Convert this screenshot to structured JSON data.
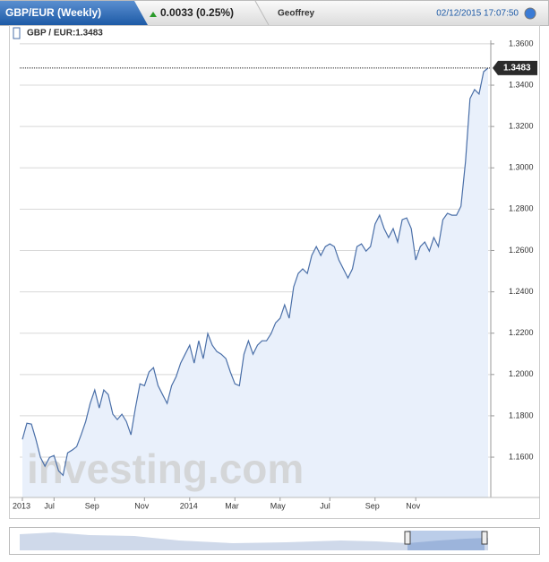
{
  "header": {
    "tab": "GBP/EUR (Weekly)",
    "change": "0.0033 (0.25%)",
    "user": "Geoffrey",
    "timestamp": "02/12/2015 17:07:50"
  },
  "legend_label": "GBP / EUR:1.3483",
  "watermark": "investing.com",
  "chart_data": {
    "type": "area",
    "color": "#4a6fa8",
    "fill": "#e9f0fb",
    "values": [
      1.1686,
      1.1764,
      1.176,
      1.1686,
      1.1599,
      1.1556,
      1.1599,
      1.1608,
      1.1534,
      1.1512,
      1.1621,
      1.1634,
      1.1651,
      1.1708,
      1.1773,
      1.186,
      1.1925,
      1.1838,
      1.1925,
      1.1903,
      1.1808,
      1.1782,
      1.1808,
      1.1773,
      1.1708,
      1.1838,
      1.1955,
      1.1946,
      1.2012,
      1.2033,
      1.1946,
      1.1903,
      1.186,
      1.1946,
      1.199,
      1.2055,
      1.2098,
      1.2142,
      1.2055,
      1.2163,
      1.2077,
      1.2198,
      1.2142,
      1.2111,
      1.2098,
      1.2077,
      1.2012,
      1.1955,
      1.1946,
      1.2098,
      1.2163,
      1.2098,
      1.2142,
      1.2163,
      1.2163,
      1.2198,
      1.225,
      1.2272,
      1.2337,
      1.2272,
      1.2424,
      1.2489,
      1.2511,
      1.2489,
      1.2576,
      1.2619,
      1.2576,
      1.2619,
      1.2632,
      1.2619,
      1.2554,
      1.2511,
      1.2467,
      1.2511,
      1.2619,
      1.2632,
      1.2597,
      1.2619,
      1.2728,
      1.2771,
      1.2706,
      1.2663,
      1.2706,
      1.2641,
      1.2749,
      1.2758,
      1.2706,
      1.2554,
      1.2619,
      1.2641,
      1.2597,
      1.2663,
      1.2619,
      1.2749,
      1.278,
      1.2771,
      1.2771,
      1.2814,
      1.3031,
      1.3335,
      1.3379,
      1.3357,
      1.3465,
      1.3483
    ],
    "xlim": [
      0,
      103
    ],
    "xticks": [
      {
        "value": 0,
        "label": "2013"
      },
      {
        "value": 7,
        "label": "Jul"
      },
      {
        "value": 16,
        "label": "Sep"
      },
      {
        "value": 27,
        "label": "Nov"
      },
      {
        "value": 37,
        "label": "2014"
      },
      {
        "value": 47,
        "label": "Mar"
      },
      {
        "value": 57,
        "label": "May"
      },
      {
        "value": 68,
        "label": "Jul"
      },
      {
        "value": 78,
        "label": "Sep"
      },
      {
        "value": 87,
        "label": "Nov"
      }
    ],
    "ylim": [
      1.1405,
      1.3617
    ],
    "yticks": [
      {
        "value": 1.16,
        "label": "1.1600"
      },
      {
        "value": 1.18,
        "label": "1.1800"
      },
      {
        "value": 1.2,
        "label": "1.2000"
      },
      {
        "value": 1.22,
        "label": "1.2200"
      },
      {
        "value": 1.24,
        "label": "1.2400"
      },
      {
        "value": 1.26,
        "label": "1.2600"
      },
      {
        "value": 1.28,
        "label": "1.2800"
      },
      {
        "value": 1.3,
        "label": "1.3000"
      },
      {
        "value": 1.32,
        "label": "1.3200"
      },
      {
        "value": 1.34,
        "label": "1.3400"
      },
      {
        "value": 1.36,
        "label": "1.3600"
      }
    ],
    "grid": true
  }
}
